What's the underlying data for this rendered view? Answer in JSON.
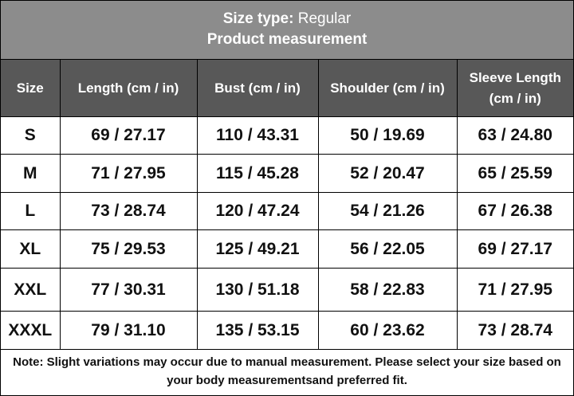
{
  "header": {
    "title_label": "Size type:",
    "title_value": "Regular",
    "subtitle": "Product measurement"
  },
  "table": {
    "columns": [
      "Size",
      "Length (cm / in)",
      "Bust (cm / in)",
      "Shoulder (cm / in)",
      "Sleeve Length (cm / in)"
    ],
    "rows": [
      [
        "S",
        "69 / 27.17",
        "110 / 43.31",
        "50 / 19.69",
        "63 / 24.80"
      ],
      [
        "M",
        "71 / 27.95",
        "115 / 45.28",
        "52 / 20.47",
        "65 / 25.59"
      ],
      [
        "L",
        "73 / 28.74",
        "120 / 47.24",
        "54 / 21.26",
        "67 / 26.38"
      ],
      [
        "XL",
        "75 / 29.53",
        "125 / 49.21",
        "56 / 22.05",
        "69 / 27.17"
      ],
      [
        "XXL",
        "77 / 30.31",
        "130 / 51.18",
        "58 / 22.83",
        "71 / 27.95"
      ],
      [
        "XXXL",
        "79 / 31.10",
        "135 / 53.15",
        "60 / 23.62",
        "73 / 28.74"
      ]
    ]
  },
  "note": "Note: Slight variations may occur due to manual measurement. Please select your size based on your body measurementsand preferred fit."
}
